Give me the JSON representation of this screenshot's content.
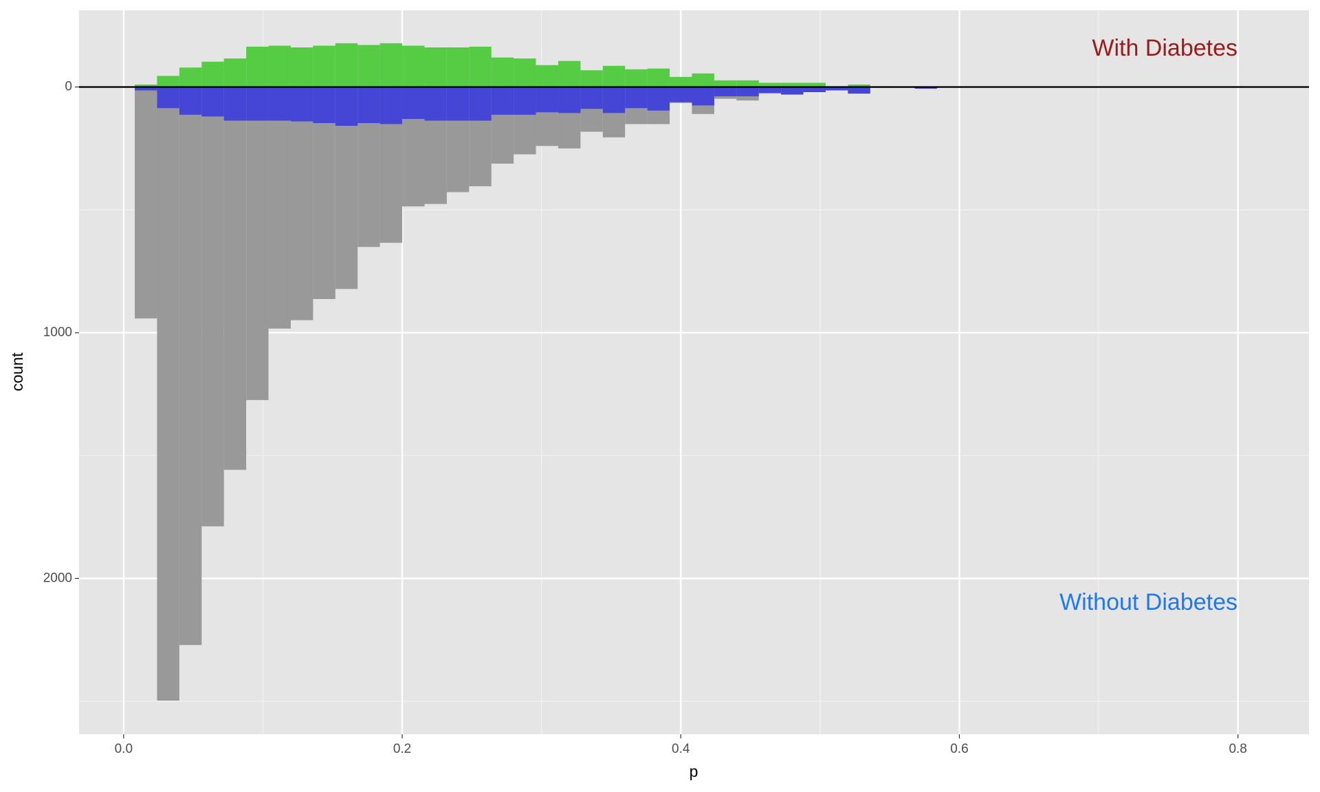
{
  "chart_data": {
    "type": "histogram",
    "x_label": "p",
    "y_label": "count",
    "bins": [
      0.008,
      0.024,
      0.04,
      0.056,
      0.072,
      0.088,
      0.104,
      0.12,
      0.136,
      0.152,
      0.168,
      0.184,
      0.2,
      0.216,
      0.232,
      0.248,
      0.264,
      0.28,
      0.296,
      0.312,
      0.328,
      0.344,
      0.36,
      0.376,
      0.392,
      0.408,
      0.424,
      0.44,
      0.456,
      0.472,
      0.488,
      0.504,
      0.52,
      0.536,
      0.552,
      0.568,
      0.584
    ],
    "series": [
      {
        "color": "#999999",
        "values": [
          942,
          2497,
          2271,
          1788,
          1558,
          1274,
          983,
          949,
          863,
          822,
          651,
          634,
          486,
          476,
          428,
          404,
          312,
          274,
          240,
          250,
          182,
          205,
          151,
          151,
          65,
          110,
          48,
          55,
          27,
          27,
          14,
          14,
          27,
          3,
          2,
          3
        ]
      },
      {
        "color": "#55cc44",
        "values": [
          -10,
          -45,
          -79,
          -103,
          -116,
          -164,
          -168,
          -161,
          -168,
          -178,
          -171,
          -178,
          -168,
          -161,
          -161,
          -164,
          -120,
          -116,
          -89,
          -106,
          -68,
          -86,
          -72,
          -75,
          -41,
          -55,
          -27,
          -27,
          -17,
          -17,
          -17,
          -3,
          -10,
          -3,
          0,
          0
        ]
      },
      {
        "color": "#4646d6",
        "values": [
          14,
          86,
          113,
          120,
          137,
          137,
          137,
          140,
          147,
          158,
          147,
          151,
          130,
          137,
          137,
          137,
          113,
          113,
          103,
          106,
          89,
          106,
          86,
          96,
          62,
          75,
          38,
          38,
          24,
          31,
          21,
          14,
          27,
          3,
          3,
          7
        ]
      }
    ],
    "xlim": [
      -0.032,
      0.851
    ],
    "xticks": [
      {
        "value": 0,
        "label": "0.0"
      },
      0.2,
      0.4,
      0.6,
      0.8
    ],
    "xminor": [
      0.1,
      0.3,
      0.5,
      0.7
    ],
    "ylim": [
      2634,
      -312
    ],
    "yticks": [
      0,
      1000,
      2000
    ],
    "yminor": [
      500,
      1500,
      2500
    ],
    "grid": true,
    "hline": 0,
    "annotations": [
      {
        "text": "With Diabetes",
        "color": "#9b1b1b"
      },
      {
        "text": "Without Diabetes",
        "color": "#1f78f0"
      }
    ]
  }
}
